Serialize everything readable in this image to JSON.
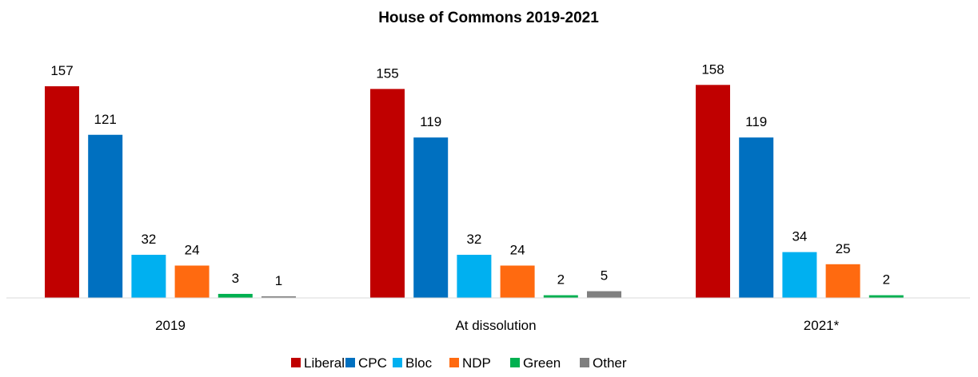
{
  "chart_data": {
    "type": "bar",
    "title": "House of Commons 2019-2021",
    "xlabel": "",
    "ylabel": "",
    "categories": [
      "2019",
      "At dissolution",
      "2021*"
    ],
    "series": [
      {
        "name": "Liberal",
        "color": "#C00000",
        "values": [
          157,
          155,
          158
        ]
      },
      {
        "name": "CPC",
        "color": "#0070C0",
        "values": [
          121,
          119,
          119
        ]
      },
      {
        "name": "Bloc",
        "color": "#00B0F0",
        "values": [
          32,
          32,
          34
        ]
      },
      {
        "name": "NDP",
        "color": "#FF6A10",
        "values": [
          24,
          24,
          25
        ]
      },
      {
        "name": "Green",
        "color": "#00B050",
        "values": [
          3,
          2,
          2
        ]
      },
      {
        "name": "Other",
        "color": "#7F7F7F",
        "values": [
          1,
          5,
          null
        ]
      }
    ],
    "ylim": [
      0,
      160
    ],
    "grid": false,
    "legend_position": "bottom"
  }
}
